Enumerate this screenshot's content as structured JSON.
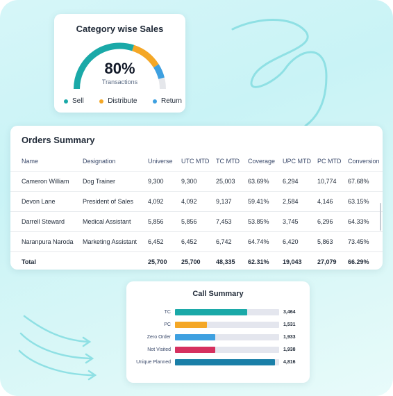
{
  "category_sales": {
    "title": "Category wise Sales",
    "percent_label": "80%",
    "percent": 80,
    "subtitle": "Transactions",
    "segments": [
      {
        "name": "Sell",
        "color": "#1aa9a8",
        "fraction": 0.6
      },
      {
        "name": "Distribute",
        "color": "#f4a726",
        "fraction": 0.22
      },
      {
        "name": "Return",
        "color": "#3ea0e0",
        "fraction": 0.1
      }
    ],
    "track_color": "#e5e7eb"
  },
  "orders_summary": {
    "title": "Orders Summary",
    "columns": [
      "Name",
      "Designation",
      "Universe",
      "UTC MTD",
      "TC MTD",
      "Coverage",
      "UPC MTD",
      "PC MTD",
      "Conversion"
    ],
    "rows": [
      [
        "Cameron William",
        "Dog Trainer",
        "9,300",
        "9,300",
        "25,003",
        "63.69%",
        "6,294",
        "10,774",
        "67.68%"
      ],
      [
        "Devon Lane",
        "President of Sales",
        "4,092",
        "4,092",
        "9,137",
        "59.41%",
        "2,584",
        "4,146",
        "63.15%"
      ],
      [
        "Darrell Steward",
        "Medical Assistant",
        "5,856",
        "5,856",
        "7,453",
        "53.85%",
        "3,745",
        "6,296",
        "64.33%"
      ],
      [
        "Naranpura Naroda",
        "Marketing Assistant",
        "6,452",
        "6,452",
        "6,742",
        "64.74%",
        "6,420",
        "5,863",
        "73.45%"
      ]
    ],
    "total": [
      "Total",
      "",
      "25,700",
      "25,700",
      "48,335",
      "62.31%",
      "19,043",
      "27,079",
      "66.29%"
    ]
  },
  "call_summary": {
    "title": "Call Summary",
    "max": 5000,
    "items": [
      {
        "label": "TC",
        "value": 3464,
        "display": "3,464",
        "color": "#1aa9a8"
      },
      {
        "label": "PC",
        "value": 1531,
        "display": "1,531",
        "color": "#f4a726"
      },
      {
        "label": "Zero Order",
        "value": 1933,
        "display": "1,933",
        "color": "#3ea0e0"
      },
      {
        "label": "Not Visited",
        "value": 1938,
        "display": "1,938",
        "color": "#d6305f"
      },
      {
        "label": "Unique Planned",
        "value": 4816,
        "display": "4,816",
        "color": "#1a7fa8"
      }
    ]
  }
}
